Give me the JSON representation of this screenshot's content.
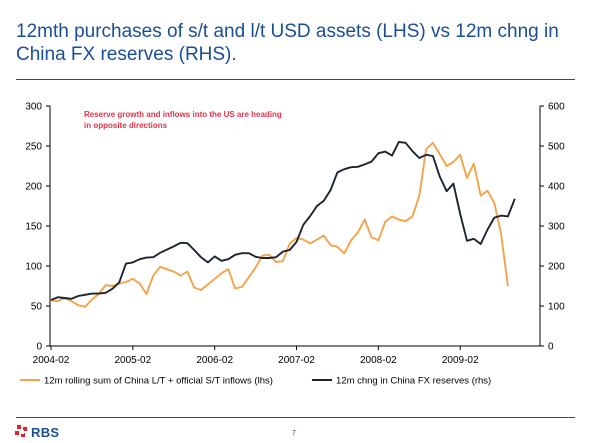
{
  "title": "12mth purchases of s/t and l/t USD assets (LHS) vs 12m chng in China FX reserves (RHS).",
  "footer": {
    "brand": "RBS",
    "page": "7"
  },
  "colors": {
    "title": "#1a4e96",
    "series_lhs": "#f5a34a",
    "series_rhs": "#1c2331",
    "annotation": "#e0334a",
    "logo_red": "#e2212b"
  },
  "chart_data": {
    "type": "line",
    "annotation": [
      "Reserve growth and inflows into the US are heading",
      "in opposite directions"
    ],
    "x_ticks": [
      "2004-02",
      "2005-02",
      "2006-02",
      "2007-02",
      "2008-02",
      "2009-02"
    ],
    "y_left": {
      "lim": [
        0,
        300
      ],
      "ticks": [
        "0",
        "50",
        "100",
        "150",
        "200",
        "250",
        "300"
      ]
    },
    "y_right": {
      "lim": [
        0,
        600
      ],
      "ticks": [
        "0",
        "100",
        "200",
        "300",
        "400",
        "500",
        "600"
      ]
    },
    "grid": false,
    "legend_position": "bottom",
    "x_start": "2004-02",
    "series": [
      {
        "name": "12m rolling sum of China L/T + official S/T inflows (lhs)",
        "axis": "left",
        "values": [
          57,
          56,
          60,
          56,
          51,
          49,
          58,
          65,
          76,
          75,
          78,
          80,
          84,
          78,
          65,
          88,
          99,
          96,
          93,
          88,
          93,
          73,
          70,
          77,
          84,
          91,
          96,
          72,
          74,
          86,
          98,
          113,
          114,
          105,
          106,
          128,
          135,
          133,
          128,
          133,
          138,
          126,
          124,
          116,
          132,
          142,
          158,
          136,
          132,
          155,
          162,
          158,
          156,
          162,
          188,
          246,
          254,
          240,
          225,
          230,
          239,
          210,
          228,
          188,
          194,
          179,
          140,
          75
        ]
      },
      {
        "name": "12m chng in China FX reserves (rhs)",
        "axis": "right",
        "values": [
          115,
          122,
          120,
          118,
          125,
          128,
          131,
          131,
          133,
          143,
          159,
          206,
          209,
          217,
          221,
          222,
          233,
          241,
          249,
          258,
          257,
          240,
          222,
          209,
          224,
          213,
          217,
          228,
          232,
          232,
          223,
          220,
          220,
          222,
          236,
          240,
          260,
          303,
          325,
          350,
          363,
          390,
          434,
          442,
          447,
          448,
          454,
          461,
          482,
          486,
          476,
          510,
          508,
          487,
          470,
          478,
          475,
          424,
          387,
          406,
          330,
          263,
          268,
          255,
          291,
          321,
          326,
          324,
          368
        ]
      }
    ]
  }
}
